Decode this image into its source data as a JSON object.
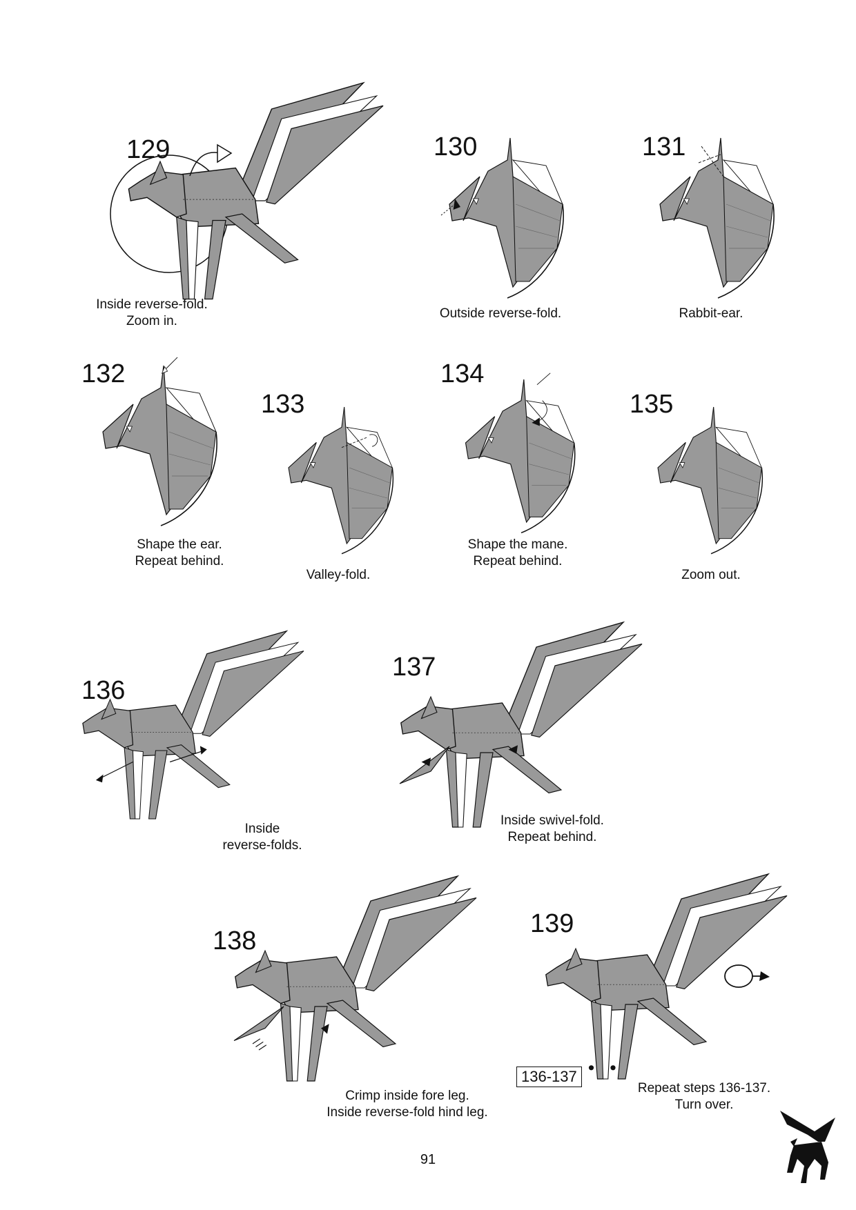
{
  "page": {
    "number": "91"
  },
  "colors": {
    "paper_fill": "#999999",
    "paper_light": "#ffffff",
    "line": "#111111"
  },
  "steps": [
    {
      "id": "129",
      "number": "129",
      "caption": [
        "Inside reverse-fold.",
        "Zoom in."
      ]
    },
    {
      "id": "130",
      "number": "130",
      "caption": [
        "Outside reverse-fold."
      ]
    },
    {
      "id": "131",
      "number": "131",
      "caption": [
        "Rabbit-ear."
      ]
    },
    {
      "id": "132",
      "number": "132",
      "caption": [
        "Shape the ear.",
        "Repeat behind."
      ]
    },
    {
      "id": "133",
      "number": "133",
      "caption": [
        "Valley-fold."
      ]
    },
    {
      "id": "134",
      "number": "134",
      "caption": [
        "Shape the mane.",
        "Repeat behind."
      ]
    },
    {
      "id": "135",
      "number": "135",
      "caption": [
        "Zoom out."
      ]
    },
    {
      "id": "136",
      "number": "136",
      "caption": [
        "Inside",
        "reverse-folds."
      ]
    },
    {
      "id": "137",
      "number": "137",
      "caption": [
        "Inside swivel-fold.",
        "Repeat behind."
      ]
    },
    {
      "id": "138",
      "number": "138",
      "caption": [
        "Crimp inside fore leg.",
        "Inside reverse-fold hind leg."
      ]
    },
    {
      "id": "139",
      "number": "139",
      "caption": [
        "Repeat steps 136-137.",
        "Turn over."
      ],
      "reference": "136-137"
    }
  ],
  "icons": {
    "turn_over": "turn-over-icon",
    "logo": "pegasus-logo"
  }
}
